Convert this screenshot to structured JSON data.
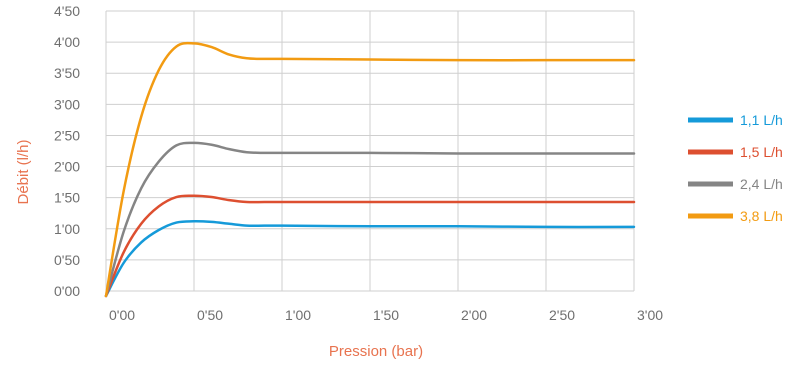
{
  "chart_data": {
    "type": "line",
    "title": "",
    "xlabel": "Pression (bar)",
    "ylabel": "Débit (l/h)",
    "x_ticks": [
      "0'00",
      "0'50",
      "1'00",
      "1'50",
      "2'00",
      "2'50",
      "3'00"
    ],
    "y_ticks": [
      "0'00",
      "0'50",
      "1'00",
      "1'50",
      "2'00",
      "2'50",
      "3'00",
      "3'50",
      "4'00",
      "4'50"
    ],
    "xlim": [
      0,
      3
    ],
    "ylim": [
      0,
      4.5
    ],
    "grid": true,
    "legend_position": "right",
    "x": [
      0,
      0.1,
      0.2,
      0.3,
      0.4,
      0.5,
      0.6,
      0.7,
      0.8,
      0.9,
      1.0,
      1.5,
      2.0,
      2.5,
      3.0
    ],
    "series": [
      {
        "name": "1,1 L/h",
        "color": "#159ad9",
        "values": [
          -0.08,
          0.45,
          0.78,
          0.98,
          1.1,
          1.12,
          1.11,
          1.08,
          1.05,
          1.05,
          1.05,
          1.04,
          1.04,
          1.03,
          1.03
        ]
      },
      {
        "name": "1,5 L/h",
        "color": "#dd4f30",
        "values": [
          -0.08,
          0.62,
          1.08,
          1.36,
          1.51,
          1.53,
          1.51,
          1.46,
          1.43,
          1.43,
          1.43,
          1.43,
          1.43,
          1.43,
          1.43
        ]
      },
      {
        "name": "2,4 L/h",
        "color": "#858585",
        "values": [
          -0.08,
          0.95,
          1.65,
          2.08,
          2.34,
          2.38,
          2.35,
          2.28,
          2.23,
          2.22,
          2.22,
          2.22,
          2.21,
          2.21,
          2.21
        ]
      },
      {
        "name": "3,8 L/h",
        "color": "#f29b12",
        "values": [
          -0.08,
          1.6,
          2.8,
          3.55,
          3.93,
          3.98,
          3.92,
          3.8,
          3.74,
          3.73,
          3.73,
          3.72,
          3.71,
          3.71,
          3.71
        ]
      }
    ]
  }
}
